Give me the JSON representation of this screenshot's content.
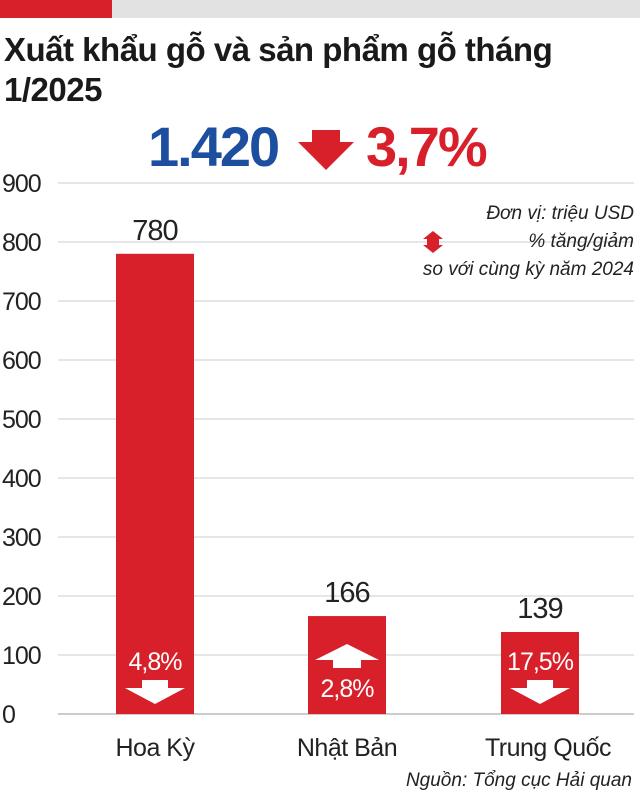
{
  "title": "Xuất khẩu gỗ và sản phẩm gỗ tháng 1/2025",
  "headline": {
    "total": "1.420",
    "change": "3,7%",
    "direction": "down",
    "total_color": "#1d4fa0",
    "change_color": "#d7202a"
  },
  "legend": {
    "unit": "Đơn vị: triệu USD",
    "change_label": "% tăng/giảm",
    "change_note": "so với cùng kỳ năm 2024"
  },
  "source": "Nguồn: Tổng cục Hải quan",
  "colors": {
    "bar": "#d7202a",
    "accent": "#d7202a",
    "grid": "#cccccc"
  },
  "chart_data": {
    "type": "bar",
    "title": "Xuất khẩu gỗ và sản phẩm gỗ tháng 1/2025",
    "unit": "Đơn vị: triệu USD",
    "categories": [
      "Hoa Kỳ",
      "Nhật Bản",
      "Trung Quốc"
    ],
    "values": [
      780,
      166,
      139
    ],
    "value_labels": [
      "780",
      "166",
      "139"
    ],
    "changes": [
      {
        "label": "4,8%",
        "direction": "down"
      },
      {
        "label": "2,8%",
        "direction": "up"
      },
      {
        "label": "17,5%",
        "direction": "down"
      }
    ],
    "ylim": [
      0,
      900
    ],
    "yticks": [
      "0",
      "100",
      "200",
      "300",
      "400",
      "500",
      "600",
      "700",
      "800",
      "900"
    ],
    "grid": true,
    "legend_position": "top-right"
  }
}
